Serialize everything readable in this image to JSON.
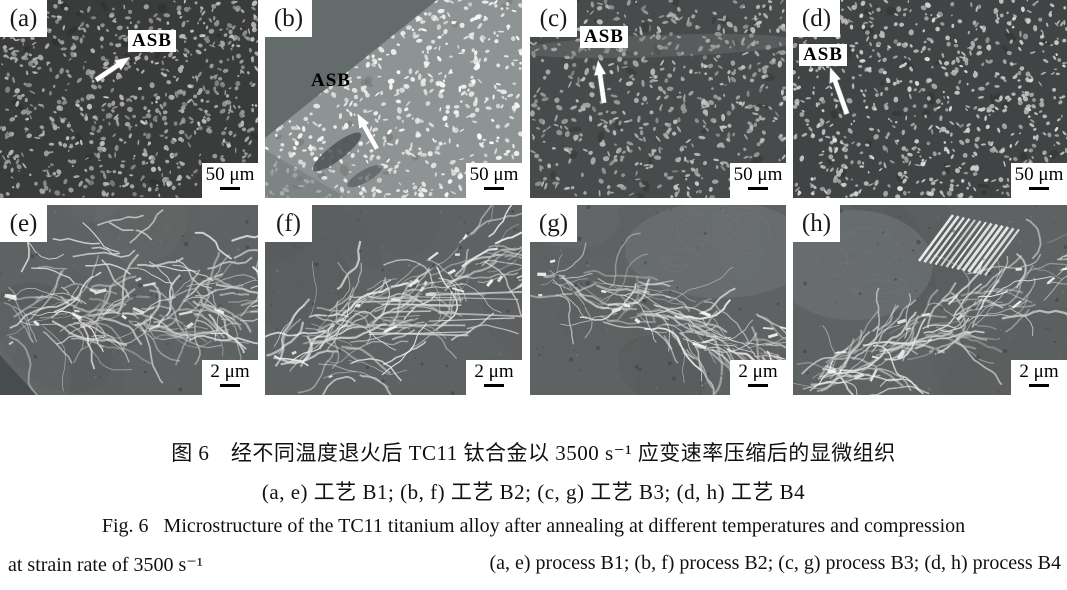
{
  "figure": {
    "panels": [
      {
        "letter": "(a)",
        "asb": "ASB",
        "scale": "50 μm"
      },
      {
        "letter": "(b)",
        "asb": "ASB",
        "scale": "50 μm"
      },
      {
        "letter": "(c)",
        "asb": "ASB",
        "scale": "50 μm"
      },
      {
        "letter": "(d)",
        "asb": "ASB",
        "scale": "50 μm"
      },
      {
        "letter": "(e)",
        "scale": "2 μm"
      },
      {
        "letter": "(f)",
        "scale": "2 μm"
      },
      {
        "letter": "(g)",
        "scale": "2 μm"
      },
      {
        "letter": "(h)",
        "scale": "2 μm"
      }
    ],
    "caption": {
      "cn_line1": "图 6　经不同温度退火后 TC11 钛合金以 3500 s⁻¹ 应变速率压缩后的显微组织",
      "cn_line2": "(a, e) 工艺 B1; (b, f) 工艺 B2; (c, g) 工艺 B3; (d, h) 工艺 B4",
      "en_line1": "Fig. 6   Microstructure of the TC11 titanium alloy after annealing at different temperatures and compression",
      "en_line2_left": "at strain rate of 3500 s⁻¹",
      "en_line2_right": "(a, e) process B1; (b, f) process B2; (c, g) process B3; (d, h) process B4"
    }
  }
}
